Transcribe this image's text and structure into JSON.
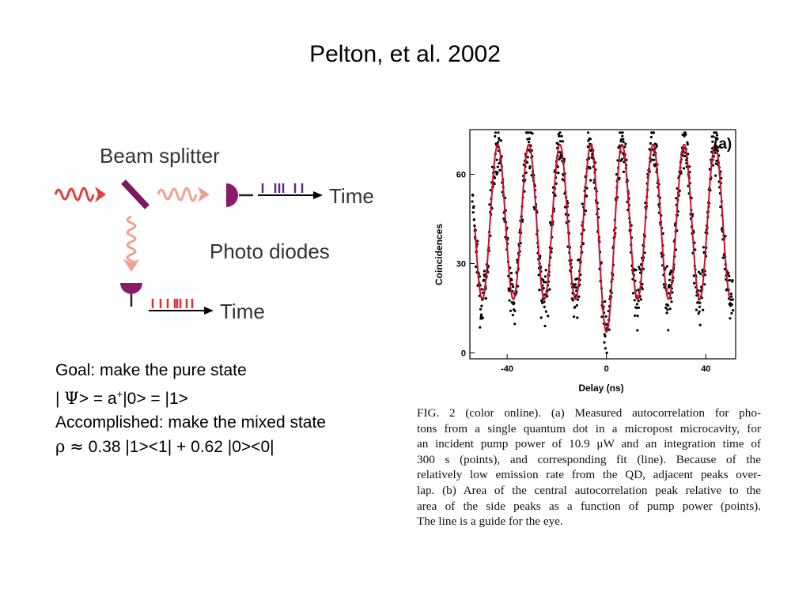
{
  "page": {
    "title": "Pelton, et al. 2002"
  },
  "diagram": {
    "beam_splitter_label": "Beam splitter",
    "photo_diodes_label": "Photo diodes",
    "time_label_top": "Time",
    "time_label_bottom": "Time",
    "colors": {
      "pulse": "#e0403c",
      "diode": "#8b1a6b",
      "tick_top": "#5a2a8a",
      "tick_bottom": "#d93030"
    }
  },
  "goal": {
    "line1": "Goal: make the pure state",
    "line2_prefix": "| ",
    "line2_symbol": "Ψ",
    "line2_mid": "> = a",
    "line2_sup": "+",
    "line2_suffix": "|0> = |1>",
    "line3": "Accomplished: make the mixed state",
    "line4_symbol": "ρ",
    "line4_approx": "≈",
    "line4_rest": " 0.38 |1><1| + 0.62 |0><0|"
  },
  "chart_data": {
    "type": "scatter",
    "title": "",
    "panel_label": "(a)",
    "xlabel": "Delay (ns)",
    "ylabel": "Coincidences",
    "xlim": [
      -55,
      52
    ],
    "ylim": [
      -2,
      75
    ],
    "xticks": [
      -40,
      0,
      40
    ],
    "yticks": [
      0,
      30,
      60
    ],
    "grid": false,
    "peak_period_ns": 12.5,
    "fit_minimum_side": 18,
    "fit_minimum_central": 7,
    "fit_peak": 70,
    "series": [
      {
        "kind": "points",
        "color": "#000000"
      },
      {
        "kind": "fit-line",
        "color": "#c8102e"
      }
    ]
  },
  "caption": {
    "lines": [
      "FIG. 2 (color online).   (a) Measured autocorrelation for pho-",
      "tons from a single quantum dot in a micropost microcavity, for",
      "an incident pump power of 10.9 μW and an integration time of",
      "300 s (points), and corresponding fit (line). Because of the",
      "relatively low emission rate from the QD, adjacent peaks over-",
      "lap. (b) Area of the central autocorrelation peak relative to the",
      "area of the side peaks as a function of pump power (points).",
      "The line is a guide for the eye."
    ]
  }
}
